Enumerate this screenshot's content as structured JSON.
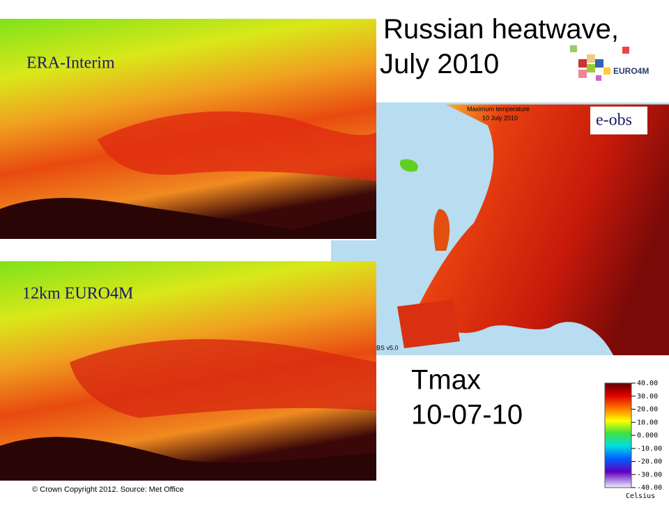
{
  "slide": {
    "title": "Russian heatwave, July 2010",
    "logo_text": "EURO4M",
    "footer": "© Crown Copyright 2012. Source: Met Office"
  },
  "panels": [
    {
      "label": "ERA-Interim"
    },
    {
      "label": "12km EURO4M"
    },
    {
      "label": "e-obs",
      "map_title": "Maximum temperature",
      "map_date": "10 July 2010",
      "map_version": "BS v5.0"
    }
  ],
  "caption": {
    "line1": "Tmax",
    "line2": "10-07-10"
  },
  "colorbar": {
    "labels": [
      "40.00",
      "30.00",
      "20.00",
      "10.00",
      "0.000",
      "-10.00",
      "-20.00",
      "-30.00",
      "-40.00"
    ],
    "unit": "Celsius"
  }
}
